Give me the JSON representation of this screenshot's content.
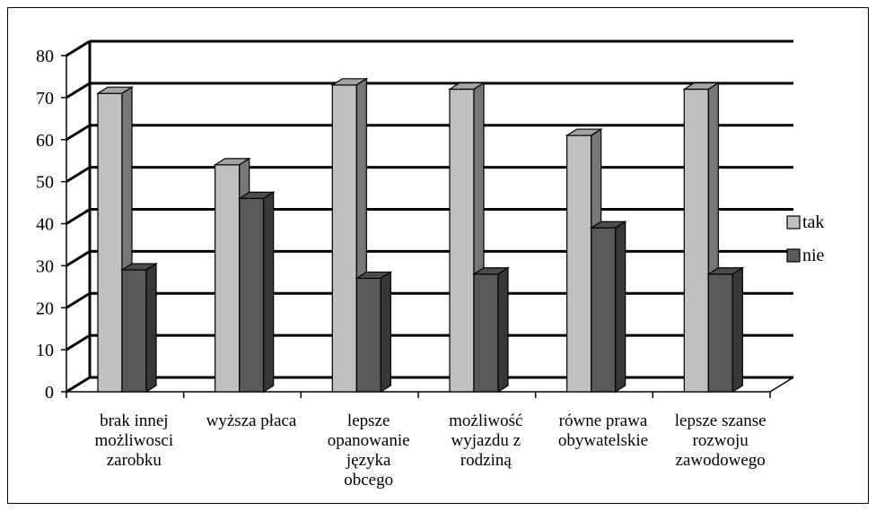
{
  "chart_data": {
    "type": "bar",
    "categories": [
      [
        "brak innej",
        "możliwosci",
        "zarobku"
      ],
      [
        "wyższa płaca"
      ],
      [
        "lepsze",
        "opanowanie",
        "języka",
        "obcego"
      ],
      [
        "możliwość",
        "wyjazdu z",
        "rodziną"
      ],
      [
        "równe prawa",
        "obywatelskie"
      ],
      [
        "lepsze szanse",
        "rozwoju",
        "zawodowego"
      ]
    ],
    "series": [
      {
        "name": "tak",
        "values": [
          71,
          54,
          73,
          72,
          61,
          72
        ],
        "color": "#c0c0c0"
      },
      {
        "name": "nie",
        "values": [
          29,
          46,
          27,
          28,
          39,
          28
        ],
        "color": "#595959"
      }
    ],
    "ylim": [
      0,
      80
    ],
    "yticks": [
      "0",
      "10",
      "20",
      "30",
      "40",
      "50",
      "60",
      "70",
      "80"
    ],
    "grid": true,
    "legend_position": "right",
    "title": "",
    "xlabel": "",
    "ylabel": ""
  }
}
